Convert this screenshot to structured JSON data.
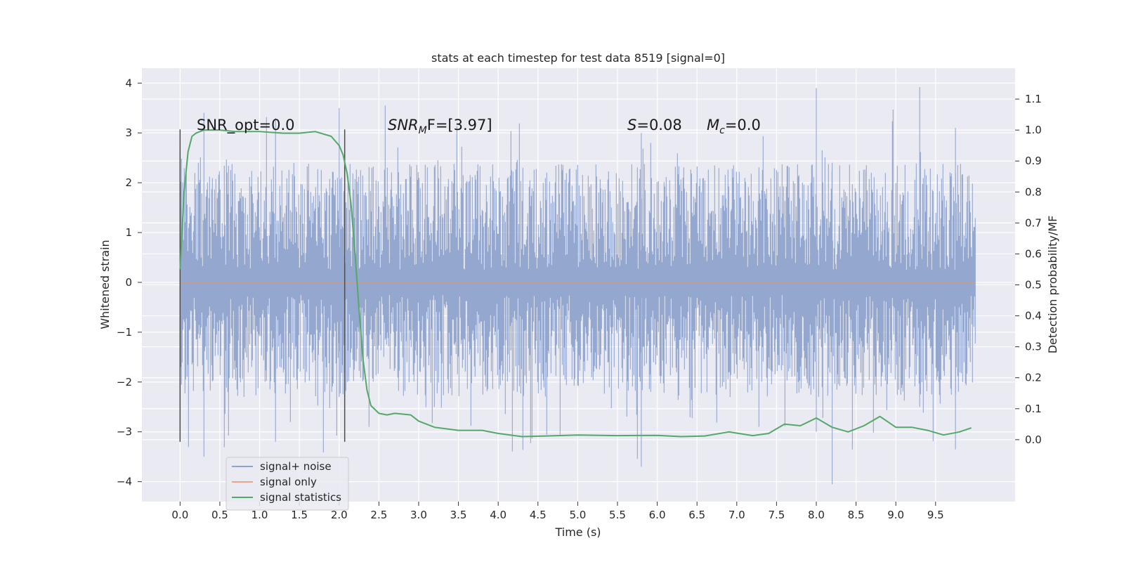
{
  "chart_data": {
    "type": "line",
    "title": "stats at each timestep for test data 8519 [signal=0]",
    "xlabel": "Time (s)",
    "ylabel_left": "Whitened strain",
    "ylabel_right": "Detection probability/MF",
    "xlim": [
      -0.48,
      10.5
    ],
    "ylim_left": [
      -4.4,
      4.3
    ],
    "ylim_right": [
      -0.2,
      1.2
    ],
    "x_ticks": [
      "0.0",
      "0.5",
      "1.0",
      "1.5",
      "2.0",
      "2.5",
      "3.0",
      "3.5",
      "4.0",
      "4.5",
      "5.0",
      "5.5",
      "6.0",
      "6.5",
      "7.0",
      "7.5",
      "8.0",
      "8.5",
      "9.0",
      "9.5"
    ],
    "y_ticks_left": [
      "4",
      "3",
      "2",
      "1",
      "0",
      "−1",
      "−2",
      "−3",
      "−4"
    ],
    "y_ticks_right": [
      "1.1",
      "1.0",
      "0.9",
      "0.8",
      "0.7",
      "0.6",
      "0.5",
      "0.4",
      "0.3",
      "0.2",
      "0.1",
      "0.0"
    ],
    "grid": true,
    "legend_position": "lower-left",
    "annotations": {
      "snr_opt": "SNR_opt=0.0",
      "snr_mf_var": "SNR",
      "snr_mf_sub": "M",
      "snr_mf_rest": "F=[3.97]",
      "s_var": "S",
      "s_rest": "=0.08",
      "mc_var": "M",
      "mc_sub": "c",
      "mc_rest": "=0.0"
    },
    "vertical_lines_x": [
      0.0,
      2.07
    ],
    "series": [
      {
        "name": "signal+ noise",
        "color": "#8fa3cc",
        "axis": "left",
        "x_range": [
          0.0,
          10.0
        ],
        "typical_envelope": [
          -2.3,
          2.4
        ],
        "extremes": [
          -4.05,
          3.92
        ]
      },
      {
        "name": "signal only",
        "color": "#e8a68a",
        "axis": "left",
        "x": [
          0.0,
          10.0
        ],
        "y": [
          0.0,
          0.0
        ]
      },
      {
        "name": "signal statistics",
        "color": "#55a868",
        "axis": "right",
        "x": [
          0.0,
          0.05,
          0.1,
          0.15,
          0.2,
          0.3,
          0.5,
          0.7,
          1.0,
          1.3,
          1.5,
          1.7,
          1.9,
          2.0,
          2.05,
          2.1,
          2.15,
          2.2,
          2.25,
          2.3,
          2.35,
          2.4,
          2.5,
          2.6,
          2.7,
          2.9,
          3.0,
          3.2,
          3.5,
          3.8,
          4.0,
          4.3,
          4.6,
          5.0,
          5.5,
          6.0,
          6.3,
          6.6,
          6.9,
          7.2,
          7.4,
          7.6,
          7.8,
          8.0,
          8.2,
          8.4,
          8.6,
          8.8,
          9.0,
          9.2,
          9.4,
          9.6,
          9.8,
          9.95
        ],
        "y": [
          0.55,
          0.8,
          0.93,
          0.98,
          0.99,
          1.0,
          1.0,
          0.995,
          0.995,
          0.99,
          0.99,
          0.995,
          0.98,
          0.95,
          0.92,
          0.86,
          0.76,
          0.6,
          0.42,
          0.26,
          0.16,
          0.11,
          0.085,
          0.08,
          0.085,
          0.08,
          0.06,
          0.04,
          0.03,
          0.03,
          0.02,
          0.01,
          0.012,
          0.015,
          0.013,
          0.014,
          0.01,
          0.012,
          0.025,
          0.013,
          0.02,
          0.05,
          0.045,
          0.07,
          0.04,
          0.025,
          0.045,
          0.075,
          0.04,
          0.04,
          0.03,
          0.015,
          0.025,
          0.038
        ]
      }
    ]
  }
}
